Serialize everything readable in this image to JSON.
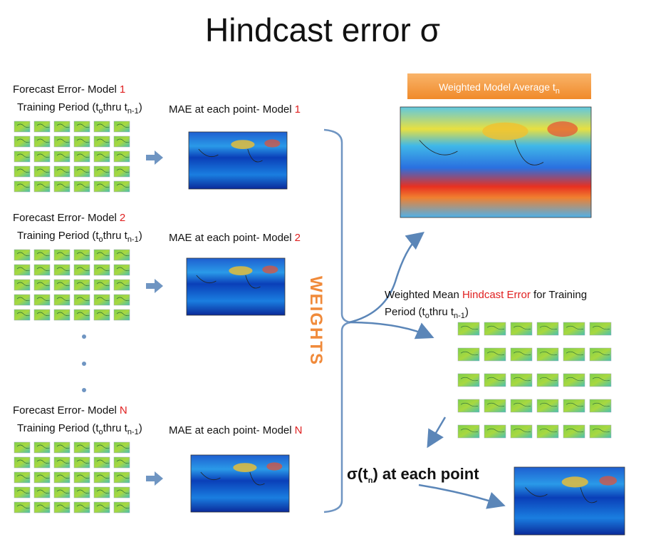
{
  "title": "Hindcast error σ",
  "models": [
    {
      "forecast_label": "Forecast Error- Model",
      "number": "1",
      "training_period": [
        "Training Period (t",
        "o",
        "thru t",
        "n-1",
        ")"
      ],
      "mae_label": "MAE at each point- Model"
    },
    {
      "forecast_label": "Forecast Error- Model",
      "number": "2",
      "training_period": [
        "Training Period (t",
        "o",
        "thru t",
        "n-1",
        ")"
      ],
      "mae_label": "MAE at each point- Model"
    },
    {
      "forecast_label": "Forecast Error- Model",
      "number": "N",
      "training_period": [
        "Training Period (t",
        "o",
        "thru t",
        "n-1",
        ")"
      ],
      "mae_label": "MAE at each point- Model"
    }
  ],
  "weights": "WEIGHTS",
  "average_banner": [
    "Weighted Model Average t",
    "n"
  ],
  "weighted_mean": {
    "line1": [
      "Weighted Mean ",
      "Hindcast Error",
      " for Training"
    ],
    "line2": [
      "Period (t",
      "o",
      "thru t",
      "n-1",
      ")"
    ]
  },
  "sigma_label": [
    "σ(t",
    "n",
    ") at each point"
  ]
}
